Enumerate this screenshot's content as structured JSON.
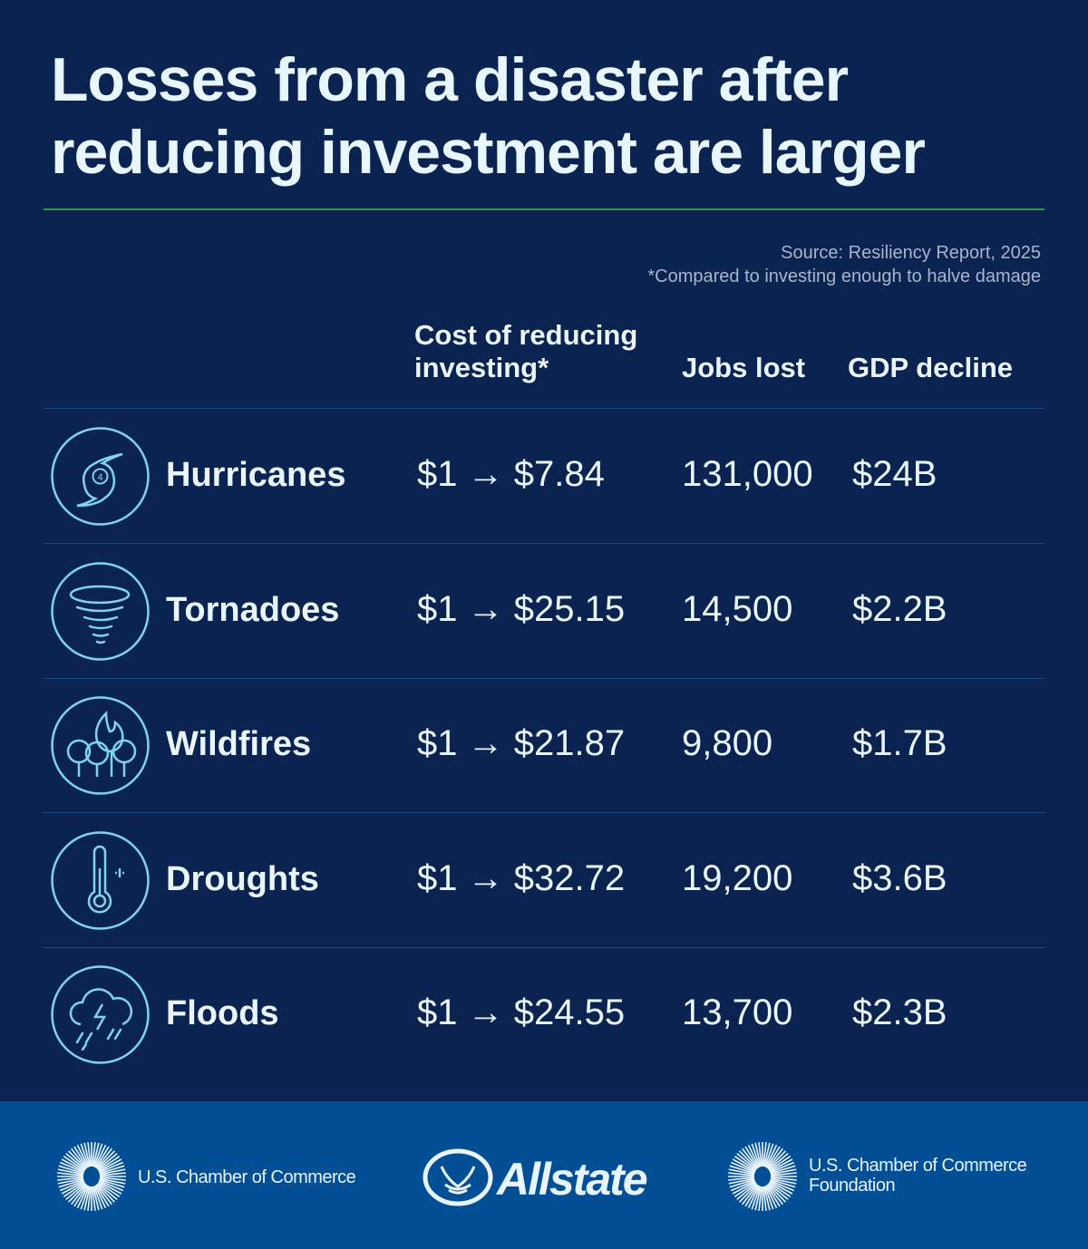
{
  "title": {
    "line1": "Losses from a disaster after",
    "line2": "reducing investment are larger"
  },
  "source": "Source: Resiliency Report, 2025",
  "footnote": "*Compared to investing enough to halve damage",
  "headers": {
    "cost_line1": "Cost of reducing",
    "cost_line2": "investing*",
    "jobs": "Jobs lost",
    "gdp": "GDP decline"
  },
  "rows": [
    {
      "icon": "hurricane-icon",
      "name": "Hurricanes",
      "cost": "$1 → $7.84",
      "jobs": "131,000",
      "gdp": "$24B"
    },
    {
      "icon": "tornado-icon",
      "name": "Tornadoes",
      "cost": "$1 → $25.15",
      "jobs": "14,500",
      "gdp": "$2.2B"
    },
    {
      "icon": "wildfire-icon",
      "name": "Wildfires",
      "cost": "$1 → $21.87",
      "jobs": "9,800",
      "gdp": "$1.7B"
    },
    {
      "icon": "thermometer-icon",
      "name": "Droughts",
      "cost": "$1 → $32.72",
      "jobs": "19,200",
      "gdp": "$3.6B"
    },
    {
      "icon": "storm-cloud-icon",
      "name": "Floods",
      "cost": "$1 → $24.55",
      "jobs": "13,700",
      "gdp": "$2.3B"
    }
  ],
  "footer": {
    "logo1": "U.S. Chamber of Commerce",
    "logo2": "Allstate",
    "logo3_line1": "U.S. Chamber of Commerce",
    "logo3_line2": "Foundation"
  },
  "colors": {
    "background": "#0b2350",
    "footer": "#034f95",
    "icon_stroke": "#7fd3f0",
    "rule": "#2f9a4a"
  }
}
